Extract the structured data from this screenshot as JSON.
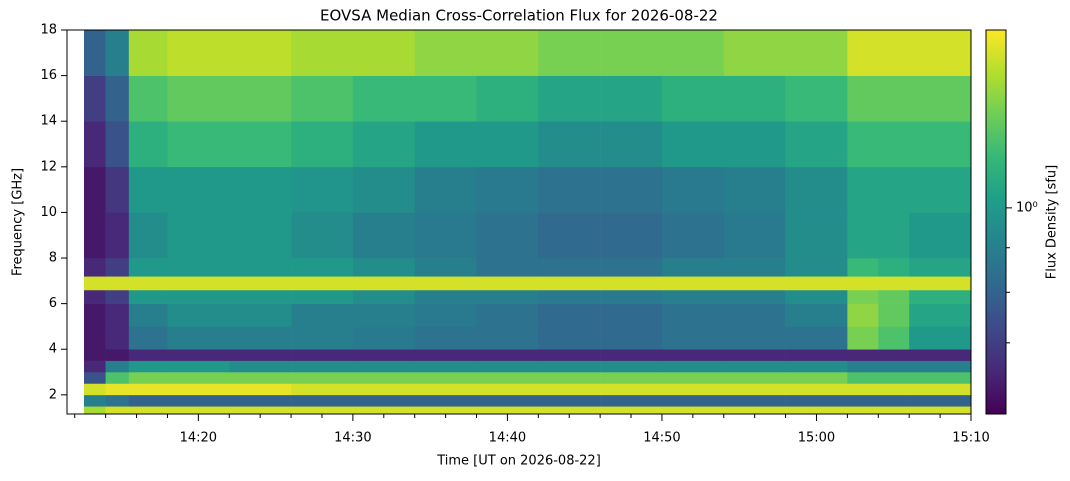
{
  "chart_data": {
    "type": "heatmap",
    "title": "EOVSA Median Cross-Correlation Flux for 2026-08-22",
    "x_label": "Time [UT on 2026-08-22]",
    "y_label": "Frequency [GHz]",
    "colorbar_label": "Flux Density [sfu]",
    "colormap": "viridis",
    "color_scale": "log",
    "x_edges": [
      852.6,
      854,
      855.5,
      858,
      862,
      866,
      870,
      874,
      878,
      882,
      886,
      890,
      894,
      898,
      902,
      904,
      906,
      910
    ],
    "y_edges": [
      1.16,
      1.5,
      2,
      2.5,
      3,
      3.5,
      4,
      5,
      6,
      6.6,
      7.2,
      8,
      10,
      12,
      14,
      16,
      18
    ],
    "z": [
      [
        1.4,
        1.5,
        1.5,
        1.5,
        1.5,
        1.5,
        1.5,
        1.5,
        1.5,
        1.5,
        1.5,
        1.5,
        1.5,
        1.5,
        1.5,
        1.5,
        1.5
      ],
      [
        0.9,
        0.85,
        0.8,
        0.8,
        0.8,
        0.8,
        0.8,
        0.8,
        0.8,
        0.8,
        0.8,
        0.8,
        0.8,
        0.8,
        0.8,
        0.8,
        0.8
      ],
      [
        1.5,
        1.55,
        1.55,
        1.55,
        1.55,
        1.5,
        1.5,
        1.5,
        1.5,
        1.5,
        1.5,
        1.5,
        1.5,
        1.5,
        1.5,
        1.5,
        1.5
      ],
      [
        0.75,
        1.2,
        1.3,
        1.3,
        1.3,
        1.3,
        1.3,
        1.3,
        1.3,
        1.3,
        1.3,
        1.3,
        1.3,
        1.3,
        1.2,
        1.2,
        1.2
      ],
      [
        0.65,
        0.9,
        1.0,
        1.0,
        0.95,
        0.95,
        0.95,
        0.95,
        0.95,
        0.95,
        0.95,
        0.95,
        0.95,
        0.95,
        0.9,
        0.9,
        0.9
      ],
      [
        0.62,
        0.62,
        0.65,
        0.65,
        0.65,
        0.65,
        0.65,
        0.65,
        0.65,
        0.65,
        0.65,
        0.65,
        0.65,
        0.65,
        0.65,
        0.65,
        0.65
      ],
      [
        0.62,
        0.65,
        0.85,
        0.9,
        0.9,
        0.9,
        0.88,
        0.85,
        0.85,
        0.82,
        0.82,
        0.85,
        0.85,
        0.85,
        1.3,
        1.2,
        1.0
      ],
      [
        0.62,
        0.65,
        0.9,
        0.95,
        0.95,
        0.9,
        0.9,
        0.88,
        0.85,
        0.82,
        0.82,
        0.85,
        0.85,
        0.9,
        1.35,
        1.25,
        1.05
      ],
      [
        0.65,
        0.7,
        1.0,
        1.0,
        1.0,
        1.0,
        0.95,
        0.9,
        0.9,
        0.88,
        0.88,
        0.9,
        0.9,
        0.95,
        1.3,
        1.25,
        1.1
      ],
      [
        1.5,
        1.5,
        1.5,
        1.5,
        1.5,
        1.5,
        1.5,
        1.5,
        1.5,
        1.5,
        1.5,
        1.5,
        1.5,
        1.5,
        1.5,
        1.5,
        1.5
      ],
      [
        0.65,
        0.7,
        1.0,
        1.0,
        1.0,
        1.0,
        0.95,
        0.9,
        0.85,
        0.85,
        0.85,
        0.9,
        0.9,
        0.95,
        1.15,
        1.1,
        1.05
      ],
      [
        0.62,
        0.65,
        0.95,
        1.0,
        1.0,
        0.95,
        0.9,
        0.88,
        0.85,
        0.82,
        0.82,
        0.85,
        0.88,
        0.95,
        1.05,
        1.05,
        1.0
      ],
      [
        0.62,
        0.68,
        1.0,
        1.0,
        1.0,
        0.98,
        0.95,
        0.9,
        0.88,
        0.85,
        0.85,
        0.88,
        0.9,
        0.95,
        1.05,
        1.05,
        1.05
      ],
      [
        0.65,
        0.75,
        1.1,
        1.15,
        1.15,
        1.1,
        1.05,
        1.0,
        1.0,
        0.95,
        0.95,
        1.0,
        1.0,
        1.05,
        1.15,
        1.15,
        1.15
      ],
      [
        0.7,
        0.8,
        1.2,
        1.25,
        1.25,
        1.2,
        1.15,
        1.15,
        1.1,
        1.05,
        1.05,
        1.1,
        1.1,
        1.15,
        1.25,
        1.25,
        1.25
      ],
      [
        0.8,
        0.9,
        1.4,
        1.45,
        1.45,
        1.4,
        1.4,
        1.35,
        1.35,
        1.3,
        1.3,
        1.3,
        1.35,
        1.35,
        1.5,
        1.5,
        1.5
      ]
    ],
    "xlim": [
      851.5,
      910
    ],
    "xticks": [
      {
        "value": 860,
        "label": "14:20"
      },
      {
        "value": 870,
        "label": "14:30"
      },
      {
        "value": 880,
        "label": "14:40"
      },
      {
        "value": 890,
        "label": "14:50"
      },
      {
        "value": 900,
        "label": "15:00"
      },
      {
        "value": 910,
        "label": "15:10"
      }
    ],
    "xminorticks": [
      852,
      854,
      856,
      858,
      862,
      864,
      866,
      868,
      872,
      874,
      876,
      878,
      882,
      884,
      886,
      888,
      892,
      894,
      896,
      898,
      902,
      904,
      906,
      908
    ],
    "ylim": [
      1.16,
      18
    ],
    "yticks": [
      2,
      4,
      6,
      8,
      10,
      12,
      14,
      16,
      18
    ],
    "zlim": [
      0.58,
      1.6
    ],
    "zticks": [
      {
        "value": 1,
        "label": "10⁰"
      }
    ],
    "zminorticks": [
      0.7,
      0.8,
      0.9
    ]
  }
}
